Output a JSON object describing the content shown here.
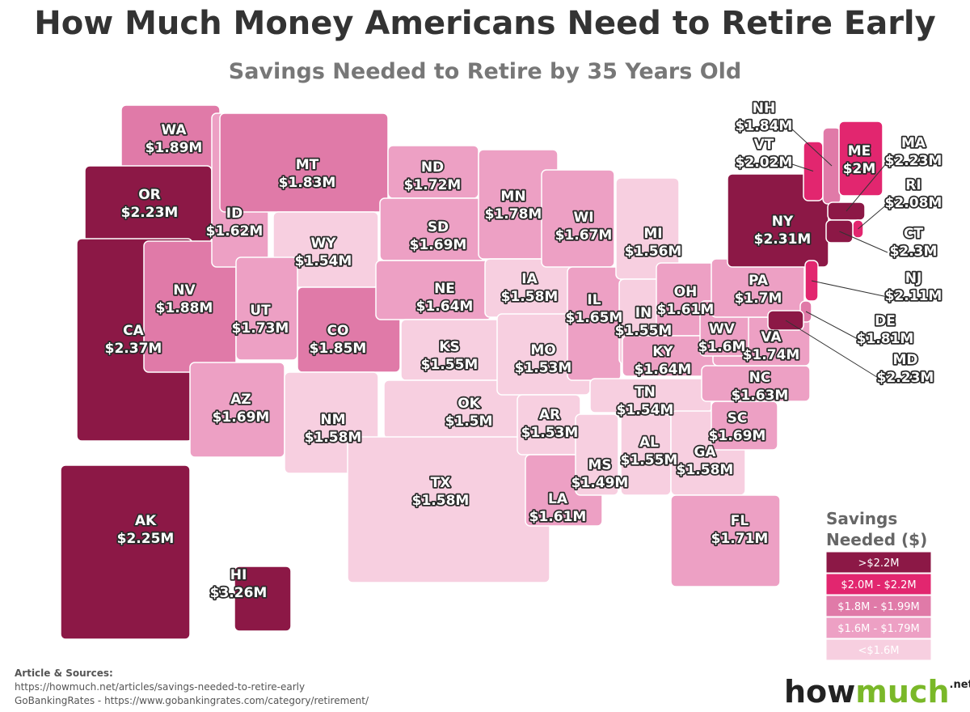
{
  "header": {
    "title": "How Much Money Americans Need to Retire Early",
    "subtitle": "Savings Needed to Retire by 35 Years Old"
  },
  "states": [
    {
      "abbr": "WA",
      "value": "$1.89M",
      "color": "#e07aa8"
    },
    {
      "abbr": "OR",
      "value": "$2.23M",
      "color": "#8c1846"
    },
    {
      "abbr": "CA",
      "value": "$2.37M",
      "color": "#8c1846"
    },
    {
      "abbr": "NV",
      "value": "$1.88M",
      "color": "#e07aa8"
    },
    {
      "abbr": "ID",
      "value": "$1.62M",
      "color": "#eda0c4"
    },
    {
      "abbr": "MT",
      "value": "$1.83M",
      "color": "#e07aa8"
    },
    {
      "abbr": "WY",
      "value": "$1.54M",
      "color": "#f7cfe0"
    },
    {
      "abbr": "UT",
      "value": "$1.73M",
      "color": "#eda0c4"
    },
    {
      "abbr": "CO",
      "value": "$1.85M",
      "color": "#e07aa8"
    },
    {
      "abbr": "AZ",
      "value": "$1.69M",
      "color": "#eda0c4"
    },
    {
      "abbr": "NM",
      "value": "$1.58M",
      "color": "#f7cfe0"
    },
    {
      "abbr": "ND",
      "value": "$1.72M",
      "color": "#eda0c4"
    },
    {
      "abbr": "SD",
      "value": "$1.69M",
      "color": "#eda0c4"
    },
    {
      "abbr": "NE",
      "value": "$1.64M",
      "color": "#eda0c4"
    },
    {
      "abbr": "KS",
      "value": "$1.55M",
      "color": "#f7cfe0"
    },
    {
      "abbr": "OK",
      "value": "$1.5M",
      "color": "#f7cfe0"
    },
    {
      "abbr": "TX",
      "value": "$1.58M",
      "color": "#f7cfe0"
    },
    {
      "abbr": "MN",
      "value": "$1.78M",
      "color": "#eda0c4"
    },
    {
      "abbr": "IA",
      "value": "$1.58M",
      "color": "#f7cfe0"
    },
    {
      "abbr": "MO",
      "value": "$1.53M",
      "color": "#f7cfe0"
    },
    {
      "abbr": "AR",
      "value": "$1.53M",
      "color": "#f7cfe0"
    },
    {
      "abbr": "LA",
      "value": "$1.61M",
      "color": "#eda0c4"
    },
    {
      "abbr": "WI",
      "value": "$1.67M",
      "color": "#eda0c4"
    },
    {
      "abbr": "IL",
      "value": "$1.65M",
      "color": "#eda0c4"
    },
    {
      "abbr": "MI",
      "value": "$1.56M",
      "color": "#f7cfe0"
    },
    {
      "abbr": "IN",
      "value": "$1.55M",
      "color": "#f7cfe0"
    },
    {
      "abbr": "OH",
      "value": "$1.61M",
      "color": "#eda0c4"
    },
    {
      "abbr": "KY",
      "value": "$1.64M",
      "color": "#eda0c4"
    },
    {
      "abbr": "TN",
      "value": "$1.54M",
      "color": "#f7cfe0"
    },
    {
      "abbr": "MS",
      "value": "$1.49M",
      "color": "#f7cfe0"
    },
    {
      "abbr": "AL",
      "value": "$1.55M",
      "color": "#f7cfe0"
    },
    {
      "abbr": "GA",
      "value": "$1.58M",
      "color": "#f7cfe0"
    },
    {
      "abbr": "FL",
      "value": "$1.71M",
      "color": "#eda0c4"
    },
    {
      "abbr": "SC",
      "value": "$1.69M",
      "color": "#eda0c4"
    },
    {
      "abbr": "NC",
      "value": "$1.63M",
      "color": "#eda0c4"
    },
    {
      "abbr": "VA",
      "value": "$1.74M",
      "color": "#eda0c4"
    },
    {
      "abbr": "WV",
      "value": "$1.6M",
      "color": "#eda0c4"
    },
    {
      "abbr": "PA",
      "value": "$1.7M",
      "color": "#eda0c4"
    },
    {
      "abbr": "NY",
      "value": "$2.31M",
      "color": "#8c1846"
    },
    {
      "abbr": "VT",
      "value": "$2.02M",
      "color": "#e2266f"
    },
    {
      "abbr": "NH",
      "value": "$1.84M",
      "color": "#e07aa8"
    },
    {
      "abbr": "ME",
      "value": "$2M",
      "color": "#e2266f"
    },
    {
      "abbr": "MA",
      "value": "$2.23M",
      "color": "#8c1846"
    },
    {
      "abbr": "RI",
      "value": "$2.08M",
      "color": "#e2266f"
    },
    {
      "abbr": "CT",
      "value": "$2.3M",
      "color": "#8c1846"
    },
    {
      "abbr": "NJ",
      "value": "$2.11M",
      "color": "#e2266f"
    },
    {
      "abbr": "DE",
      "value": "$1.81M",
      "color": "#e07aa8"
    },
    {
      "abbr": "MD",
      "value": "$2.23M",
      "color": "#8c1846"
    },
    {
      "abbr": "AK",
      "value": "$2.25M",
      "color": "#8c1846"
    },
    {
      "abbr": "HI",
      "value": "$3.26M",
      "color": "#8c1846"
    }
  ],
  "legend": {
    "title_lines": [
      "Savings",
      "Needed ($)"
    ],
    "items": [
      {
        "label": ">$2.2M",
        "color": "#8c1846"
      },
      {
        "label": "$2.0M - $2.2M",
        "color": "#e2266f"
      },
      {
        "label": "$1.8M - $1.99M",
        "color": "#e07aa8"
      },
      {
        "label": "$1.6M - $1.79M",
        "color": "#eda0c4"
      },
      {
        "label": "<$1.6M",
        "color": "#f7cfe0"
      }
    ]
  },
  "footer": {
    "sources_title": "Article & Sources:",
    "sources": [
      "https://howmuch.net/articles/savings-needed-to-retire-early",
      "GoBankingRates - https://www.gobankingrates.com/category/retirement/"
    ],
    "logo": {
      "part1": "how",
      "part2": "much",
      "suffix": ".net"
    }
  }
}
